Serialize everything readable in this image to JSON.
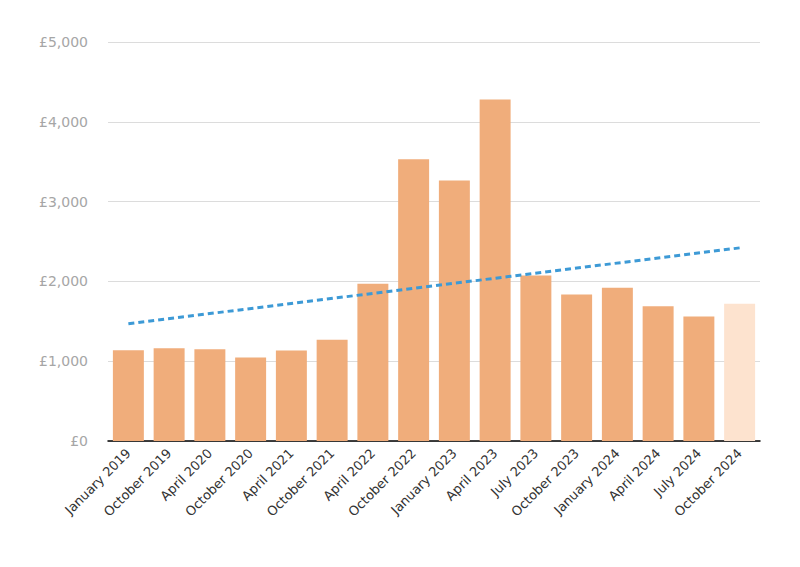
{
  "chart_data": {
    "type": "bar",
    "categories": [
      "January 2019",
      "October 2019",
      "April 2020",
      "October 2020",
      "April 2021",
      "October 2021",
      "April 2022",
      "October 2022",
      "January 2023",
      "April 2023",
      "July 2023",
      "October 2023",
      "January 2024",
      "April 2024",
      "July 2024",
      "October 2024"
    ],
    "series": [
      {
        "type": "bar",
        "values": [
          1137,
          1162,
          1150,
          1045,
          1135,
          1270,
          1970,
          3530,
          3265,
          4280,
          2075,
          1835,
          1920,
          1690,
          1560,
          1720
        ],
        "colors": [
          "#f0ad7b",
          "#f0ad7b",
          "#f0ad7b",
          "#f0ad7b",
          "#f0ad7b",
          "#f0ad7b",
          "#f0ad7b",
          "#f0ad7b",
          "#f0ad7b",
          "#f0ad7b",
          "#f0ad7b",
          "#f0ad7b",
          "#f0ad7b",
          "#f0ad7b",
          "#f0ad7b",
          "#fde3cf"
        ]
      },
      {
        "type": "line",
        "values": [
          1470,
          null,
          null,
          null,
          null,
          null,
          null,
          null,
          null,
          null,
          null,
          null,
          null,
          null,
          null,
          2420
        ],
        "color": "#3d9ad6",
        "line_style": "dashed"
      }
    ],
    "ylim": [
      0,
      5000
    ],
    "yticks": [
      {
        "value": 0,
        "label": "£0"
      },
      {
        "value": 1000,
        "label": "£1,000"
      },
      {
        "value": 2000,
        "label": "£2,000"
      },
      {
        "value": 3000,
        "label": "£3,000"
      },
      {
        "value": 4000,
        "label": "£4,000"
      },
      {
        "value": 5000,
        "label": "£5,000"
      }
    ],
    "grid": true
  }
}
